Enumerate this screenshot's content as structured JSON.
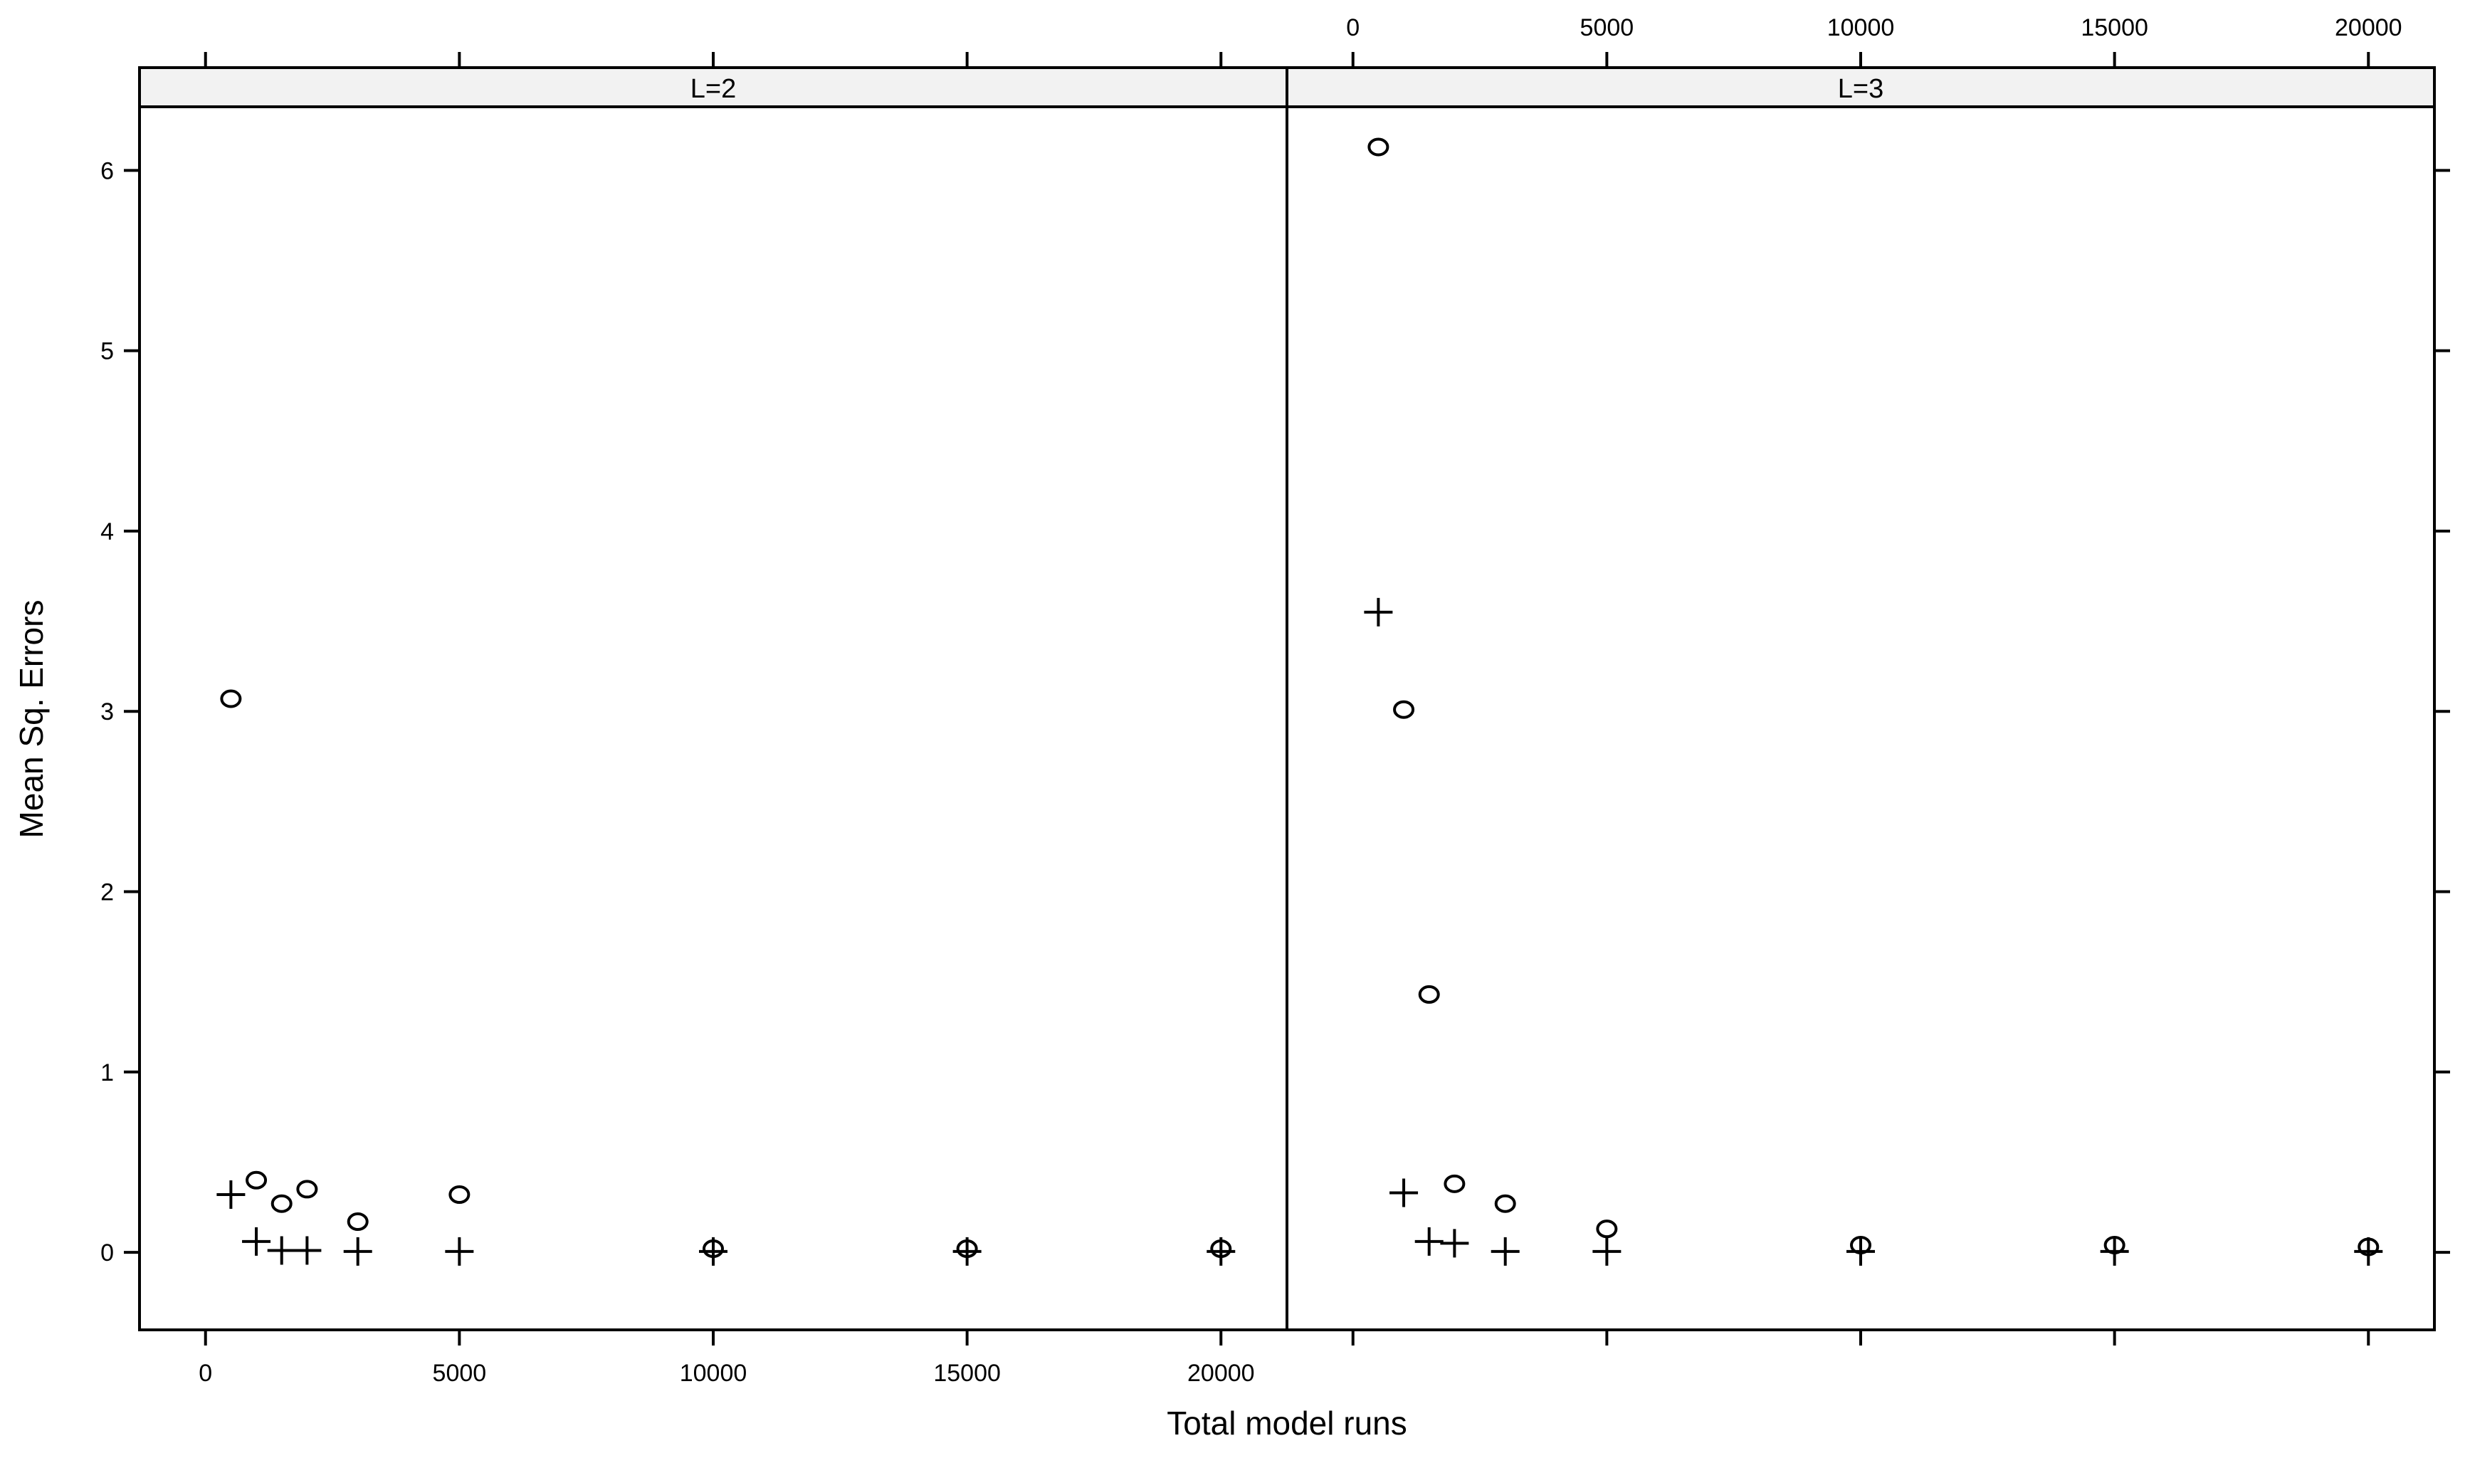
{
  "chart_data": {
    "type": "scatter",
    "title": "",
    "xlabel": "Total model runs",
    "ylabel": "Mean Sq. Errors",
    "xlim": [
      -1300,
      21300
    ],
    "ylim": [
      -0.43,
      6.57
    ],
    "x_ticks": [
      0,
      5000,
      10000,
      15000,
      20000
    ],
    "y_ticks": [
      0,
      1,
      2,
      3,
      4,
      5,
      6
    ],
    "grid": false,
    "legend": "none",
    "panels": [
      {
        "strip": "L=2",
        "series": [
          {
            "marker": "circle",
            "x": [
              500,
              1000,
              1500,
              2000,
              3000,
              5000,
              10000,
              15000,
              20000
            ],
            "y": [
              3.07,
              0.4,
              0.27,
              0.35,
              0.17,
              0.32,
              0.02,
              0.02,
              0.02
            ]
          },
          {
            "marker": "plus",
            "x": [
              500,
              1000,
              1500,
              2000,
              3000,
              5000,
              10000,
              15000,
              20000
            ],
            "y": [
              0.32,
              0.06,
              0.01,
              0.01,
              0.005,
              0.005,
              0.005,
              0.005,
              0.005
            ]
          }
        ]
      },
      {
        "strip": "L=3",
        "series": [
          {
            "marker": "circle",
            "x": [
              500,
              1000,
              1500,
              2000,
              3000,
              5000,
              10000,
              15000,
              20000
            ],
            "y": [
              6.13,
              3.01,
              1.43,
              0.38,
              0.27,
              0.13,
              0.04,
              0.04,
              0.03
            ]
          },
          {
            "marker": "plus",
            "x": [
              500,
              1000,
              1500,
              2000,
              3000,
              5000,
              10000,
              15000,
              20000
            ],
            "y": [
              3.55,
              0.33,
              0.06,
              0.05,
              0.005,
              0.005,
              0.005,
              0.005,
              0.005
            ]
          }
        ]
      }
    ]
  }
}
